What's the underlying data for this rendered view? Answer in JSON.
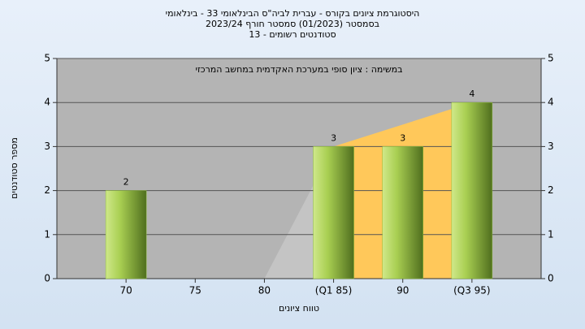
{
  "chart_data": {
    "type": "bar",
    "title": "היסטוגרמת ציונים בקורס - עברית לביה\"ס הבינלאומי 33 - בינלאומי",
    "subtitle": "בסמסטר  (01/2023)  סמסטר חורף  2023/24",
    "subtitle2": "סטודנטים רשומים - 13",
    "annotation": "במשימה : ציון סופי במערכת האקדמית במחשב המרכזי",
    "x_label": "טווח ציונים",
    "y_label": "מספר סטודנטים",
    "categories": [
      "70",
      "75",
      "80",
      "(Q1 85)",
      "90",
      "(Q3 95)"
    ],
    "values": [
      2,
      0,
      0,
      3,
      3,
      4
    ],
    "color": "#8fbf3a",
    "areas": [
      {
        "color": "#c4c4c4",
        "positions": [
          2,
          3
        ],
        "values": [
          0,
          3
        ]
      },
      {
        "color": "#ffc85a",
        "positions": [
          3,
          5
        ],
        "values": [
          3,
          4
        ]
      }
    ],
    "ylim": [
      0,
      5
    ],
    "yticks": [
      0,
      1,
      2,
      3,
      4,
      5
    ],
    "grid": true
  }
}
